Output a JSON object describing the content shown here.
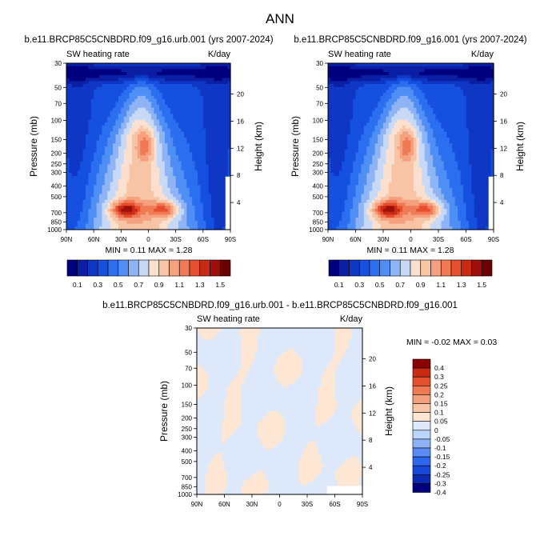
{
  "title": "ANN",
  "colors": {
    "main_scale": [
      "#00007f",
      "#0a1fa3",
      "#0f36c4",
      "#1550e0",
      "#2b6ff0",
      "#4f8ef5",
      "#8fb4f5",
      "#c7d9f7",
      "#fbe0d0",
      "#f8c4a6",
      "#f5a07e",
      "#f07a55",
      "#e64f2e",
      "#c92a14",
      "#9e0e0a",
      "#6b0000"
    ],
    "diff_scale": [
      "#00007f",
      "#0a2ab0",
      "#1548d8",
      "#2d68ec",
      "#5b8cf3",
      "#8db2f7",
      "#bcd5fb",
      "#dde9fb",
      "#fde6d4",
      "#f9c6a9",
      "#f4a07d",
      "#ee7a53",
      "#e4502c",
      "#c92a14",
      "#8b0000"
    ]
  },
  "panels": [
    {
      "title": "b.e11.BRCP85C5CNBDRD.f09_g16.urb.001 (yrs 2007-2024)",
      "left_label": "SW heating rate",
      "right_label": "K/day",
      "stats": "MIN =  0.11  MAX =  1.28",
      "ylabel": "Pressure (mb)",
      "ylabel_right": "Height (km)"
    },
    {
      "title": "b.e11.BRCP85C5CNBDRD.f09_g16.001 (yrs 2007-2024)",
      "left_label": "SW heating rate",
      "right_label": "K/day",
      "stats": "MIN =  0.11  MAX =  1.28",
      "ylabel": "Pressure (mb)",
      "ylabel_right": "Height (km)"
    }
  ],
  "diff_panel": {
    "title": "b.e11.BRCP85C5CNBDRD.f09_g16.urb.001 - b.e11.BRCP85C5CNBDRD.f09_g16.001",
    "left_label": "SW heating rate",
    "right_label": "K/day",
    "stats": "MIN = -0.02  MAX =  0.03",
    "ylabel": "Pressure (mb)",
    "ylabel_right": "Height (km)"
  },
  "main_colorbar_labels": [
    "0.1",
    "0.3",
    "0.5",
    "0.7",
    "0.9",
    "1.1",
    "1.3",
    "1.5"
  ],
  "diff_colorbar_labels": [
    "0.4",
    "0.3",
    "0.25",
    "0.2",
    "0.15",
    "0.1",
    "0.05",
    "0",
    "-0.05",
    "-0.1",
    "-0.15",
    "-0.2",
    "-0.25",
    "-0.3",
    "-0.4"
  ],
  "chart_data": [
    {
      "type": "heatmap",
      "title": "b.e11.BRCP85C5CNBDRD.f09_g16.urb.001 (yrs 2007-2024)",
      "xlabel": "",
      "ylabel": "Pressure (mb)",
      "y2label": "Height (km)",
      "x_ticks": [
        "90N",
        "60N",
        "30N",
        "0",
        "30S",
        "60S",
        "90S"
      ],
      "y_ticks": [
        "30",
        "50",
        "70",
        "100",
        "150",
        "200",
        "250",
        "300",
        "400",
        "500",
        "700",
        "850",
        "1000"
      ],
      "y2_ticks": [
        "20",
        "16",
        "12",
        "8",
        "4"
      ],
      "ylim": [
        1000,
        30
      ],
      "y_scale": "log",
      "colorbar_ticks": [
        0.1,
        0.3,
        0.5,
        0.7,
        0.9,
        1.1,
        1.3,
        1.5
      ],
      "min": 0.11,
      "max": 1.28,
      "units": "K/day"
    },
    {
      "type": "heatmap",
      "title": "b.e11.BRCP85C5CNBDRD.f09_g16.001 (yrs 2007-2024)",
      "xlabel": "",
      "ylabel": "Pressure (mb)",
      "y2label": "Height (km)",
      "x_ticks": [
        "90N",
        "60N",
        "30N",
        "0",
        "30S",
        "60S",
        "90S"
      ],
      "y_ticks": [
        "30",
        "50",
        "70",
        "100",
        "150",
        "200",
        "250",
        "300",
        "400",
        "500",
        "700",
        "850",
        "1000"
      ],
      "y2_ticks": [
        "20",
        "16",
        "12",
        "8",
        "4"
      ],
      "ylim": [
        1000,
        30
      ],
      "y_scale": "log",
      "colorbar_ticks": [
        0.1,
        0.3,
        0.5,
        0.7,
        0.9,
        1.1,
        1.3,
        1.5
      ],
      "min": 0.11,
      "max": 1.28,
      "units": "K/day"
    },
    {
      "type": "heatmap",
      "title": "b.e11.BRCP85C5CNBDRD.f09_g16.urb.001 - b.e11.BRCP85C5CNBDRD.f09_g16.001",
      "xlabel": "",
      "ylabel": "Pressure (mb)",
      "y2label": "Height (km)",
      "x_ticks": [
        "90N",
        "60N",
        "30N",
        "0",
        "30S",
        "60S",
        "90S"
      ],
      "y_ticks": [
        "30",
        "50",
        "70",
        "100",
        "150",
        "200",
        "250",
        "300",
        "400",
        "500",
        "700",
        "850",
        "1000"
      ],
      "y2_ticks": [
        "20",
        "16",
        "12",
        "8",
        "4"
      ],
      "ylim": [
        1000,
        30
      ],
      "y_scale": "log",
      "colorbar_ticks": [
        0.4,
        0.3,
        0.25,
        0.2,
        0.15,
        0.1,
        0.05,
        0,
        -0.05,
        -0.1,
        -0.15,
        -0.2,
        -0.25,
        -0.3,
        -0.4
      ],
      "min": -0.02,
      "max": 0.03,
      "units": "K/day"
    }
  ]
}
